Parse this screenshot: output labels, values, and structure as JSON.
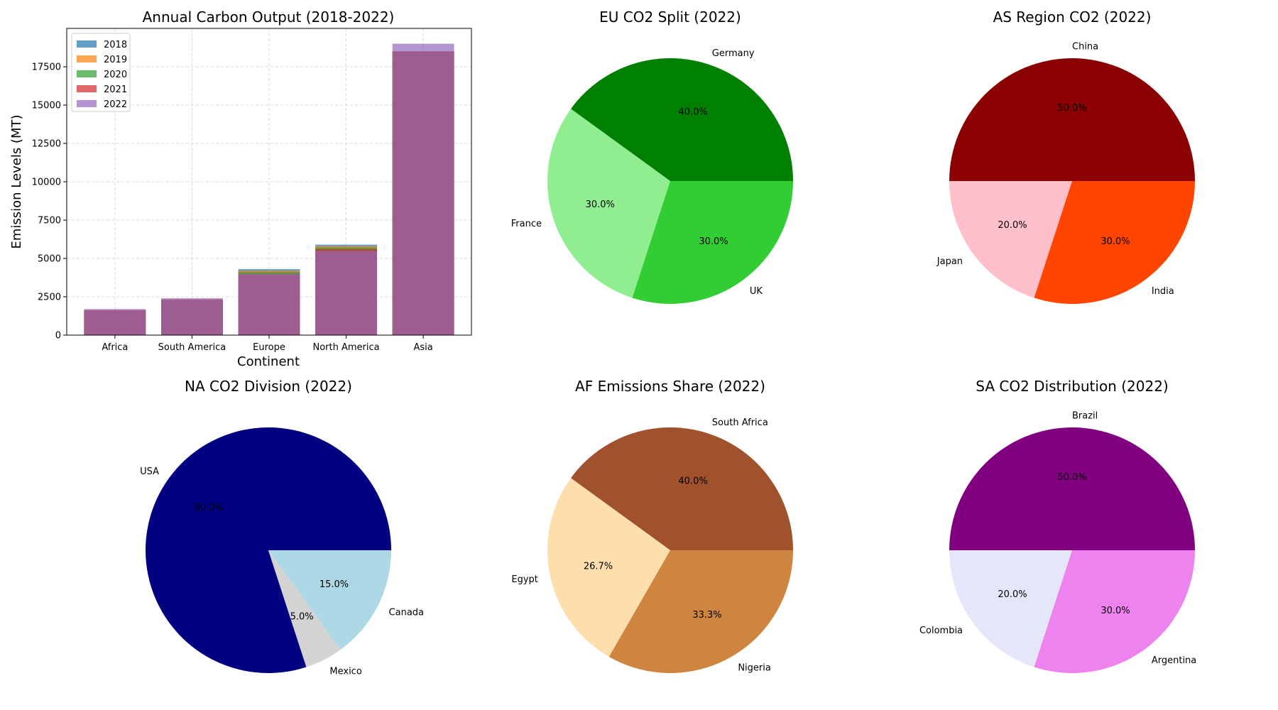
{
  "chart_data": [
    {
      "type": "bar",
      "title": "Annual Carbon Output (2018-2022)",
      "xlabel": "Continent",
      "ylabel": "Emission Levels (MT)",
      "categories": [
        "Africa",
        "South America",
        "Europe",
        "North America",
        "Asia"
      ],
      "ylim": [
        0,
        20000
      ],
      "yticks": [
        0,
        2500,
        5000,
        7500,
        10000,
        12500,
        15000,
        17500
      ],
      "grid": true,
      "legend_position": "upper-left",
      "overlay": true,
      "alpha": 0.7,
      "series": [
        {
          "name": "2018",
          "color": "#1f77b4",
          "values": [
            1600,
            2300,
            4300,
            5900,
            18500
          ]
        },
        {
          "name": "2019",
          "color": "#ff7f0e",
          "values": [
            1650,
            2350,
            4200,
            5800,
            18500
          ]
        },
        {
          "name": "2020",
          "color": "#2ca02c",
          "values": [
            1580,
            2280,
            4100,
            5700,
            18500
          ]
        },
        {
          "name": "2021",
          "color": "#d62728",
          "values": [
            1620,
            2320,
            3950,
            5600,
            18500
          ]
        },
        {
          "name": "2022",
          "color": "#9467bd",
          "values": [
            1700,
            2400,
            4000,
            5500,
            19000
          ]
        }
      ]
    },
    {
      "type": "pie",
      "title": "EU CO2 Split (2022)",
      "labels": [
        "Germany",
        "France",
        "UK"
      ],
      "values": [
        40,
        30,
        30
      ],
      "pct_labels": [
        "40.0%",
        "30.0%",
        "30.0%"
      ],
      "colors": [
        "#008000",
        "#90ee90",
        "#32cd32"
      ]
    },
    {
      "type": "pie",
      "title": "AS Region CO2 (2022)",
      "labels": [
        "China",
        "Japan",
        "India"
      ],
      "values": [
        50,
        20,
        30
      ],
      "pct_labels": [
        "50.0%",
        "20.0%",
        "30.0%"
      ],
      "colors": [
        "#8b0000",
        "#ffc0cb",
        "#ff4500"
      ]
    },
    {
      "type": "pie",
      "title": "NA CO2 Division (2022)",
      "labels": [
        "USA",
        "Mexico",
        "Canada"
      ],
      "values": [
        80,
        5,
        15
      ],
      "pct_labels": [
        "80.0%",
        "5.0%",
        "15.0%"
      ],
      "colors": [
        "#000080",
        "#d3d3d3",
        "#add8e6"
      ]
    },
    {
      "type": "pie",
      "title": "AF Emissions Share (2022)",
      "labels": [
        "South Africa",
        "Egypt",
        "Nigeria"
      ],
      "values": [
        40,
        26.7,
        33.3
      ],
      "pct_labels": [
        "40.0%",
        "26.7%",
        "33.3%"
      ],
      "colors": [
        "#a0522d",
        "#ffdead",
        "#cd853f"
      ]
    },
    {
      "type": "pie",
      "title": "SA CO2 Distribution (2022)",
      "labels": [
        "Brazil",
        "Colombia",
        "Argentina"
      ],
      "values": [
        50,
        20,
        30
      ],
      "pct_labels": [
        "50.0%",
        "20.0%",
        "30.0%"
      ],
      "colors": [
        "#800080",
        "#e6e6fa",
        "#ee82ee"
      ]
    }
  ]
}
